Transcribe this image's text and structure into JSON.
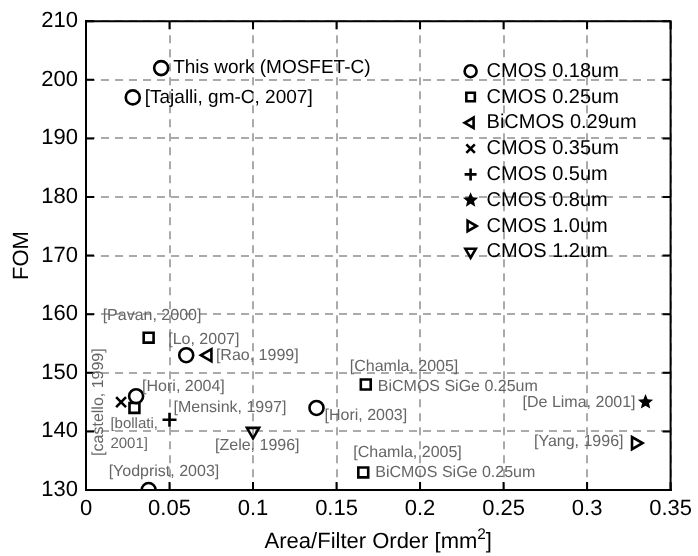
{
  "chart_data": {
    "type": "scatter",
    "xlabel": "Area/Filter Order [mm$^{2}$]",
    "ylabel": "FOM",
    "xlim": [
      0,
      0.35
    ],
    "xticks": [
      0,
      0.05,
      0.1,
      0.15,
      0.2,
      0.25,
      0.3,
      0.35
    ],
    "ylim": [
      130,
      210
    ],
    "yticks": [
      130,
      140,
      150,
      160,
      170,
      180,
      190,
      200,
      210
    ],
    "grid": true,
    "legend": "top right",
    "series": [
      {
        "name": "CMOS 0.18um",
        "color": "#000000",
        "marker": "circle",
        "x": [
          0.045,
          0.028,
          0.06,
          0.03,
          0.138,
          0.0375
        ],
        "values": [
          202,
          197,
          153,
          146,
          144,
          130
        ]
      },
      {
        "name": "CMOS 0.25um",
        "color": "#000000",
        "marker": "square",
        "x": [
          0.0375,
          0.029,
          0.1675,
          0.166
        ],
        "values": [
          156,
          144,
          148,
          133
        ]
      },
      {
        "name": "BiCMOS 0.29um",
        "color": "#000000",
        "marker": "triangle-left",
        "x": [
          0.073
        ],
        "values": [
          153
        ]
      },
      {
        "name": "CMOS 0.35um",
        "color": "#000000",
        "marker": "x",
        "x": [
          0.021
        ],
        "values": [
          145
        ]
      },
      {
        "name": "CMOS 0.5um",
        "color": "#000000",
        "marker": "cross",
        "x": [
          0.05
        ],
        "values": [
          142
        ]
      },
      {
        "name": "CMOS 0.8um",
        "color": "#000000",
        "marker": "star",
        "x": [
          0.335
        ],
        "values": [
          145
        ]
      },
      {
        "name": "CMOS 1.0um",
        "color": "#000000",
        "marker": "triangle-right",
        "x": [
          0.329
        ],
        "values": [
          138
        ]
      },
      {
        "name": "CMOS 1.2um",
        "color": "#000000",
        "marker": "triangle-down",
        "x": [
          0.1
        ],
        "values": [
          140
        ]
      }
    ],
    "annotations": [
      {
        "text": "This work (MOSFET-C)",
        "x": 0.045,
        "y": 202
      },
      {
        "text": "[Tajalli, gm-C, 2007]",
        "x": 0.028,
        "y": 197
      },
      {
        "text": "[Pavan, 2000]",
        "x": 0.0375,
        "y": 156
      },
      {
        "text": "[Lo, 2007]",
        "x": 0.06,
        "y": 153
      },
      {
        "text": "[Rao, 1999]",
        "x": 0.073,
        "y": 153
      },
      {
        "text": "[castello, 1999]",
        "x": 0.021,
        "y": 145
      },
      {
        "text": "[Hori, 2004]",
        "x": 0.03,
        "y": 146
      },
      {
        "text": "[bollati,\n2001]",
        "x": 0.029,
        "y": 144
      },
      {
        "text": "[Mensink, 1997]",
        "x": 0.05,
        "y": 142
      },
      {
        "text": "[Zele, 1996]",
        "x": 0.1,
        "y": 140
      },
      {
        "text": "[Hori, 2003]",
        "x": 0.138,
        "y": 144
      },
      {
        "text": "[Yodprist, 2003]",
        "x": 0.0375,
        "y": 130
      },
      {
        "text": "[Chamla, 2005]",
        "x": 0.1675,
        "y": 148
      },
      {
        "text": "BiCMOS SiGe 0.25um",
        "x": 0.1675,
        "y": 148
      },
      {
        "text": "[Chamla, 2005]",
        "x": 0.166,
        "y": 133
      },
      {
        "text": "BiCMOS SiGe 0.25um",
        "x": 0.166,
        "y": 133
      },
      {
        "text": "[De Lima, 2001]",
        "x": 0.335,
        "y": 145
      },
      {
        "text": "[Yang, 1996]",
        "x": 0.329,
        "y": 138
      }
    ]
  }
}
